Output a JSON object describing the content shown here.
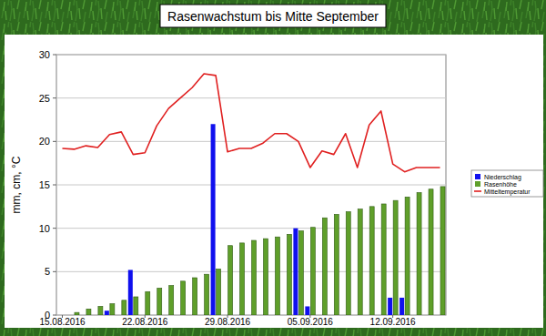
{
  "chart_data": {
    "type": "bar",
    "title": "Rasenwachstum bis Mitte September",
    "y_label": "mm, cm, °C",
    "categories": [
      "15.08.2016",
      null,
      null,
      null,
      null,
      null,
      null,
      "22.08.2016",
      null,
      null,
      null,
      null,
      null,
      null,
      "29.08.2016",
      null,
      null,
      null,
      null,
      null,
      null,
      "05.09.2016",
      null,
      null,
      null,
      null,
      null,
      null,
      "12.09.2016",
      null,
      null,
      null,
      null
    ],
    "series": [
      {
        "name": "Niederschlag",
        "type": "bar",
        "color": "#1010ee",
        "values": [
          0,
          0,
          0,
          0,
          0.5,
          0,
          5.2,
          0,
          0,
          0,
          0,
          0,
          0,
          22,
          0,
          0,
          0,
          0,
          0,
          0,
          10,
          1,
          0,
          0,
          0,
          0,
          0,
          0,
          2,
          2,
          0,
          0,
          0
        ]
      },
      {
        "name": "Rasenhöhe",
        "type": "bar",
        "color": "#5f9f2a",
        "values": [
          0,
          0.3,
          0.7,
          1.0,
          1.3,
          1.7,
          2.1,
          2.7,
          3.1,
          3.4,
          3.9,
          4.3,
          4.7,
          5.3,
          8.0,
          8.3,
          8.6,
          8.8,
          9.0,
          9.3,
          9.7,
          10.1,
          11.2,
          11.6,
          11.9,
          12.2,
          12.5,
          12.8,
          13.2,
          13.6,
          14.1,
          14.5,
          14.8
        ]
      },
      {
        "name": "Mitteltemperatur",
        "type": "line",
        "color": "#e02020",
        "values": [
          19.2,
          19.1,
          19.5,
          19.3,
          20.8,
          21.1,
          18.5,
          18.7,
          21.8,
          23.8,
          25.0,
          26.2,
          27.8,
          27.6,
          18.8,
          19.2,
          19.2,
          19.8,
          20.9,
          20.9,
          20.0,
          17.0,
          18.9,
          18.5,
          20.9,
          17.0,
          21.9,
          23.5,
          17.4,
          16.5,
          17.0,
          17.0,
          17.0
        ]
      }
    ],
    "ylim": [
      0,
      30
    ],
    "yticks": [
      0,
      5,
      10,
      15,
      20,
      25,
      30
    ],
    "grid": true,
    "legend": "right"
  }
}
